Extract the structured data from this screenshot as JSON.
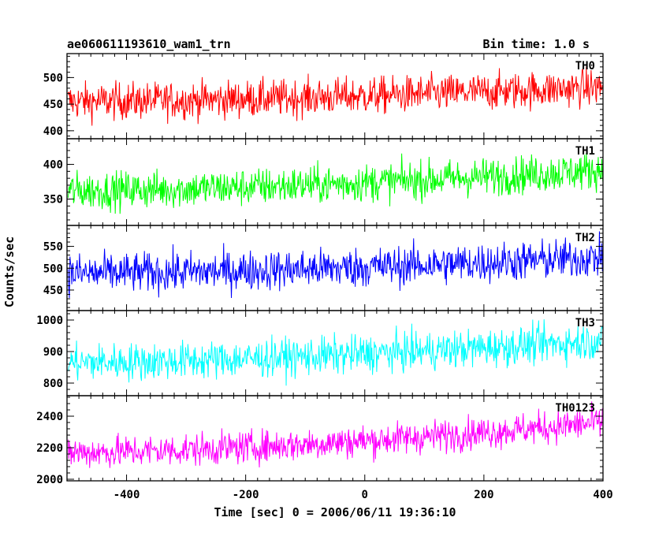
{
  "header": {
    "title": "ae060611193610_wam1_trn",
    "bin_time": "Bin time: 1.0 s"
  },
  "chart_data": {
    "type": "line",
    "xlabel": "Time [sec] 0 = 2006/06/11 19:36:10",
    "ylabel": "Counts/sec",
    "xlim": [
      -500,
      400
    ],
    "xticks": [
      -400,
      -200,
      0,
      200,
      400
    ],
    "bin_time_s": 1.0,
    "panels": [
      {
        "name": "TH0",
        "color": "#ff0000",
        "ylim": [
          385,
          545
        ],
        "yticks": [
          400,
          450,
          500
        ],
        "trend_start": 455,
        "trend_end": 482,
        "amplitude": 32
      },
      {
        "name": "TH1",
        "color": "#00ff00",
        "ylim": [
          312,
          437
        ],
        "yticks": [
          350,
          400
        ],
        "trend_start": 362,
        "trend_end": 392,
        "amplitude": 25
      },
      {
        "name": "TH2",
        "color": "#0000ff",
        "ylim": [
          403,
          598
        ],
        "yticks": [
          450,
          500,
          550
        ],
        "trend_start": 488,
        "trend_end": 525,
        "amplitude": 42
      },
      {
        "name": "TH3",
        "color": "#00ffff",
        "ylim": [
          760,
          1030
        ],
        "yticks": [
          800,
          900,
          1000
        ],
        "trend_start": 865,
        "trend_end": 935,
        "amplitude": 55
      },
      {
        "name": "TH0123",
        "color": "#ff00ff",
        "ylim": [
          1990,
          2530
        ],
        "yticks": [
          2000,
          2200,
          2400
        ],
        "trend_start": 2170,
        "trend_end": 2360,
        "amplitude": 95
      }
    ]
  }
}
